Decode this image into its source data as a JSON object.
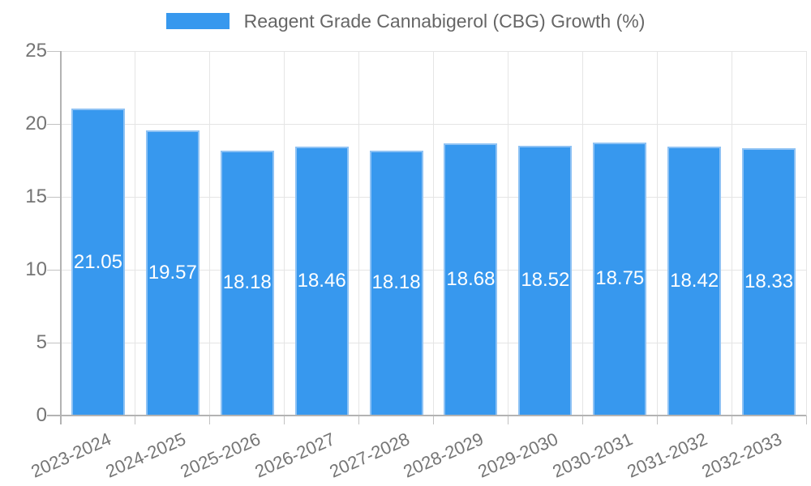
{
  "legend": {
    "label": "Reagent Grade Cannabigerol (CBG) Growth (%)"
  },
  "colors": {
    "bar_fill": "#3798ee",
    "bar_edge": "#8ec2f4",
    "gridline": "#e5e5e5",
    "axis_line": "#b3b3b3",
    "tick_mark": "#c2c2c2",
    "axis_text": "#757575",
    "legend_text": "#666666",
    "value_text": "#ffffff",
    "background": "#ffffff"
  },
  "chart_data": {
    "type": "bar",
    "title": "Reagent Grade Cannabigerol (CBG) Growth (%)",
    "categories": [
      "2023-2024",
      "2024-2025",
      "2025-2026",
      "2026-2027",
      "2027-2028",
      "2028-2029",
      "2029-2030",
      "2030-2031",
      "2031-2032",
      "2032-2033"
    ],
    "values": [
      21.05,
      19.57,
      18.18,
      18.46,
      18.18,
      18.68,
      18.52,
      18.75,
      18.42,
      18.33
    ],
    "value_label_format": "2dp",
    "xlabel": "",
    "ylabel": "",
    "ylim": [
      0,
      25
    ],
    "yticks": [
      0,
      5,
      10,
      15,
      20,
      25
    ],
    "grid": true,
    "legend_position": "top",
    "x_tick_rotation_deg": -24
  }
}
